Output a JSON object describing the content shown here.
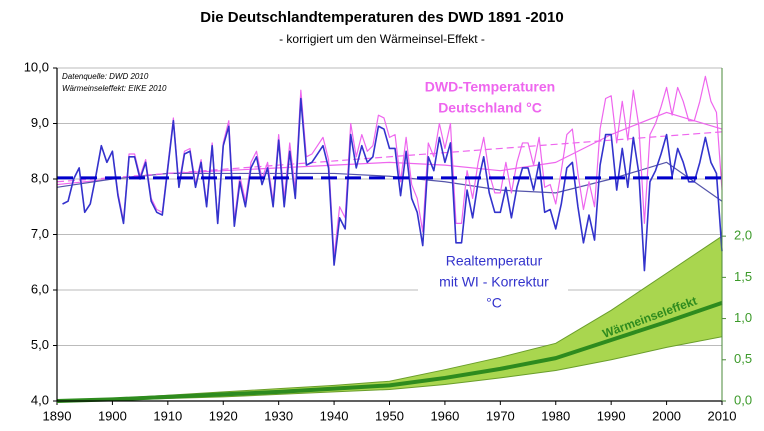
{
  "chart_data": {
    "type": "line",
    "title": "Die Deutschlandtemperaturen des DWD 1891 -2010",
    "subtitle": "- korrigiert um den Wärmeinsel-Effekt -",
    "annotations": [
      "Datenquelle: DWD 2010",
      "Wärmeinseleffekt: EIKE 2010"
    ],
    "xlim": [
      1890,
      2010
    ],
    "xticks": [
      1890,
      1900,
      1910,
      1920,
      1930,
      1940,
      1950,
      1960,
      1970,
      1980,
      1990,
      2000,
      2010
    ],
    "ylim": [
      4,
      10
    ],
    "yticks": [
      {
        "value": 4,
        "label": "4,0"
      },
      {
        "value": 5,
        "label": "5,0"
      },
      {
        "value": 6,
        "label": "6,0"
      },
      {
        "value": 7,
        "label": "7,0"
      },
      {
        "value": 8,
        "label": "8,0"
      },
      {
        "value": 9,
        "label": "9,0"
      },
      {
        "value": 10,
        "label": "10,0"
      }
    ],
    "y2lim": [
      0,
      4.04
    ],
    "y2ticks": [
      {
        "value": 0,
        "label": "0,0"
      },
      {
        "value": 0.5,
        "label": "0,5"
      },
      {
        "value": 1,
        "label": "1,0"
      },
      {
        "value": 1.5,
        "label": "1,5"
      },
      {
        "value": 2,
        "label": "2,0"
      }
    ],
    "grid": true,
    "x": [
      1891,
      1892,
      1893,
      1894,
      1895,
      1896,
      1897,
      1898,
      1899,
      1900,
      1901,
      1902,
      1903,
      1904,
      1905,
      1906,
      1907,
      1908,
      1909,
      1910,
      1911,
      1912,
      1913,
      1914,
      1915,
      1916,
      1917,
      1918,
      1919,
      1920,
      1921,
      1922,
      1923,
      1924,
      1925,
      1926,
      1927,
      1928,
      1929,
      1930,
      1931,
      1932,
      1933,
      1934,
      1935,
      1936,
      1937,
      1938,
      1939,
      1940,
      1941,
      1942,
      1943,
      1944,
      1945,
      1946,
      1947,
      1948,
      1949,
      1950,
      1951,
      1952,
      1953,
      1954,
      1955,
      1956,
      1957,
      1958,
      1959,
      1960,
      1961,
      1962,
      1963,
      1964,
      1965,
      1966,
      1967,
      1968,
      1969,
      1970,
      1971,
      1972,
      1973,
      1974,
      1975,
      1976,
      1977,
      1978,
      1979,
      1980,
      1981,
      1982,
      1983,
      1984,
      1985,
      1986,
      1987,
      1988,
      1989,
      1990,
      1991,
      1992,
      1993,
      1994,
      1995,
      1996,
      1997,
      1998,
      1999,
      2000,
      2001,
      2002,
      2003,
      2004,
      2005,
      2006,
      2007,
      2008,
      2009,
      2010
    ],
    "series": [
      {
        "label_lines": [
          "DWD-Temperaturen",
          "Deutschland °C"
        ],
        "color": "#ee66ee",
        "width": 1.2,
        "values": [
          7.55,
          7.6,
          8.0,
          8.2,
          7.4,
          7.55,
          8.05,
          8.6,
          8.3,
          8.5,
          7.75,
          7.25,
          8.45,
          8.45,
          8.05,
          8.35,
          7.65,
          7.45,
          7.4,
          8.25,
          9.1,
          7.9,
          8.5,
          8.55,
          7.9,
          8.35,
          7.55,
          8.65,
          7.25,
          8.65,
          9.05,
          7.25,
          8.05,
          7.6,
          8.3,
          8.5,
          8.0,
          8.3,
          7.6,
          8.8,
          7.65,
          8.65,
          7.8,
          9.6,
          8.4,
          8.45,
          8.6,
          8.75,
          8.35,
          6.6,
          7.5,
          7.3,
          9.0,
          8.4,
          8.8,
          8.5,
          8.6,
          9.15,
          9.1,
          8.75,
          8.8,
          7.95,
          8.75,
          7.9,
          7.65,
          7.05,
          8.65,
          8.4,
          9.0,
          8.55,
          9.0,
          7.2,
          7.2,
          8.15,
          7.65,
          8.3,
          8.75,
          8.1,
          7.75,
          7.75,
          8.3,
          7.75,
          8.3,
          8.65,
          8.65,
          8.25,
          8.75,
          7.85,
          7.9,
          7.55,
          8.15,
          8.8,
          8.9,
          8.1,
          7.45,
          7.95,
          7.5,
          8.9,
          9.45,
          9.5,
          8.65,
          9.4,
          8.7,
          9.6,
          8.95,
          7.2,
          8.8,
          9.0,
          9.3,
          9.65,
          9.15,
          9.65,
          9.4,
          9.05,
          9.05,
          9.4,
          9.85,
          9.4,
          9.2,
          7.8
        ]
      },
      {
        "label_lines": [
          "Realtemperatur",
          "mit WI - Korrektur",
          "°C"
        ],
        "color": "#3333cc",
        "width": 1.6,
        "values": [
          7.55,
          7.6,
          8.0,
          8.2,
          7.4,
          7.55,
          8.05,
          8.6,
          8.3,
          8.5,
          7.7,
          7.2,
          8.4,
          8.4,
          8.0,
          8.3,
          7.6,
          7.4,
          7.35,
          8.2,
          9.05,
          7.85,
          8.45,
          8.5,
          7.85,
          8.3,
          7.5,
          8.6,
          7.2,
          8.6,
          8.95,
          7.15,
          7.95,
          7.5,
          8.2,
          8.4,
          7.9,
          8.2,
          7.5,
          8.7,
          7.5,
          8.5,
          7.65,
          9.45,
          8.25,
          8.3,
          8.45,
          8.6,
          8.2,
          6.45,
          7.3,
          7.1,
          8.8,
          8.2,
          8.6,
          8.3,
          8.4,
          8.95,
          8.9,
          8.55,
          8.55,
          7.7,
          8.5,
          7.65,
          7.4,
          6.8,
          8.4,
          8.15,
          8.75,
          8.3,
          8.65,
          6.85,
          6.85,
          7.8,
          7.3,
          7.95,
          8.4,
          7.75,
          7.4,
          7.4,
          7.85,
          7.3,
          7.85,
          8.2,
          8.2,
          7.8,
          8.3,
          7.4,
          7.45,
          7.1,
          7.55,
          8.2,
          8.3,
          7.5,
          6.85,
          7.35,
          6.9,
          8.25,
          8.8,
          8.8,
          7.8,
          8.55,
          7.85,
          8.75,
          8.1,
          6.35,
          7.95,
          8.15,
          8.45,
          8.8,
          8.05,
          8.55,
          8.3,
          7.95,
          7.95,
          8.3,
          8.75,
          8.3,
          8.1,
          6.7
        ]
      },
      {
        "color": "#ee66ee",
        "width": 1.2,
        "dash": "7 4",
        "x": [
          1890,
          2010
        ],
        "values": [
          7.95,
          8.85
        ]
      },
      {
        "color": "#0000cc",
        "width": 3,
        "dash": "16 8",
        "x": [
          1890,
          2010
        ],
        "values": [
          8.02,
          8.02
        ]
      },
      {
        "color": "#ee66ee",
        "width": 1.2,
        "x": [
          1890,
          1900,
          1910,
          1920,
          1930,
          1940,
          1950,
          1960,
          1970,
          1980,
          1990,
          2000,
          2010
        ],
        "values": [
          7.9,
          8.0,
          8.1,
          8.15,
          8.2,
          8.25,
          8.3,
          8.25,
          8.15,
          8.3,
          8.8,
          9.2,
          8.9
        ]
      },
      {
        "color": "#5555aa",
        "width": 1.2,
        "x": [
          1890,
          1900,
          1910,
          1920,
          1930,
          1940,
          1950,
          1960,
          1970,
          1980,
          1990,
          2000,
          2010
        ],
        "values": [
          7.85,
          8.0,
          8.1,
          8.1,
          8.1,
          8.1,
          8.05,
          7.95,
          7.8,
          7.75,
          8.0,
          8.3,
          7.6
        ]
      },
      {
        "label_lines": [
          "Wärmeinseleffekt"
        ],
        "color": "#2e8b1e",
        "width": 4,
        "axis": "y2",
        "x": [
          1890,
          1900,
          1910,
          1920,
          1930,
          1940,
          1950,
          1960,
          1970,
          1980,
          1990,
          2000,
          2010
        ],
        "values": [
          0,
          0.02,
          0.05,
          0.08,
          0.11,
          0.15,
          0.19,
          0.28,
          0.39,
          0.52,
          0.74,
          0.96,
          1.19
        ]
      }
    ],
    "wi_band": {
      "color": "#a9d64f",
      "edge": "#6a9e2a",
      "x": [
        1890,
        1900,
        1910,
        1920,
        1930,
        1940,
        1950,
        1960,
        1970,
        1980,
        1990,
        2000,
        2010
      ],
      "upper": [
        0,
        0.03,
        0.07,
        0.11,
        0.15,
        0.19,
        0.24,
        0.38,
        0.53,
        0.7,
        1.1,
        1.55,
        2.0
      ],
      "lower": [
        0,
        0.01,
        0.03,
        0.05,
        0.08,
        0.11,
        0.14,
        0.2,
        0.28,
        0.37,
        0.5,
        0.65,
        0.78
      ]
    }
  }
}
